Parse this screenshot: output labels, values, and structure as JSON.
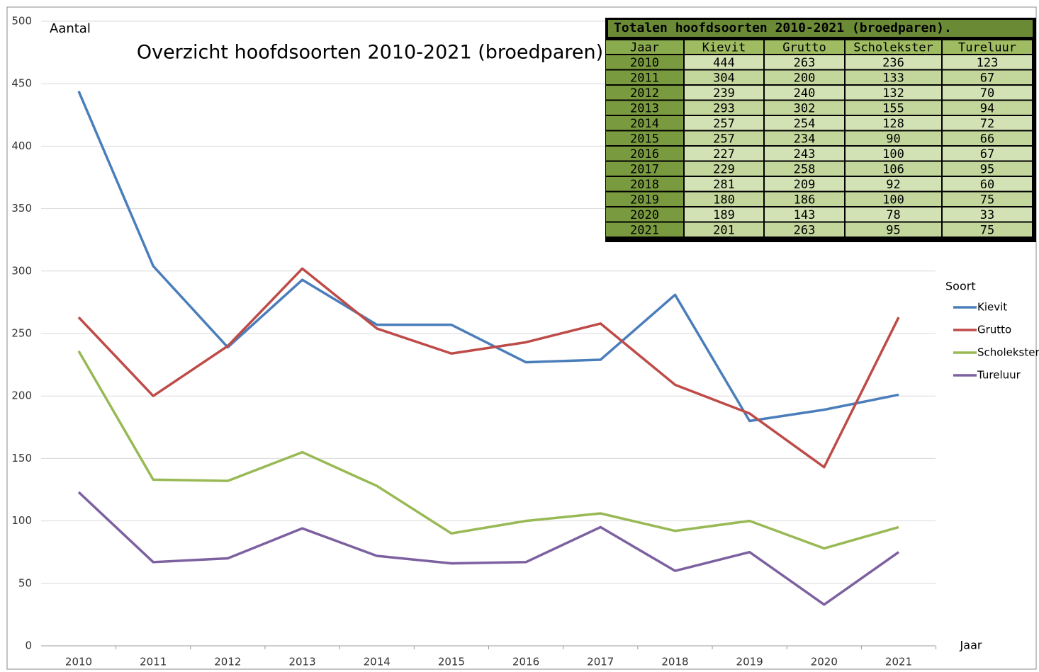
{
  "chart_data": {
    "type": "line",
    "title": "Overzicht hoofdsoorten 2010-2021 (broedparen)",
    "y_label": "Aantal",
    "x_label": "Jaar",
    "legend_title": "Soort",
    "categories": [
      "2010",
      "2011",
      "2012",
      "2013",
      "2014",
      "2015",
      "2016",
      "2017",
      "2018",
      "2019",
      "2020",
      "2021"
    ],
    "series": [
      {
        "name": "Kievit",
        "color": "#4a7ebb",
        "values": [
          444,
          304,
          239,
          293,
          257,
          257,
          227,
          229,
          281,
          180,
          189,
          201
        ]
      },
      {
        "name": "Grutto",
        "color": "#be4b48",
        "values": [
          263,
          200,
          240,
          302,
          254,
          234,
          243,
          258,
          209,
          186,
          143,
          263
        ]
      },
      {
        "name": "Scholekster",
        "color": "#98b954",
        "values": [
          236,
          133,
          132,
          155,
          128,
          90,
          100,
          106,
          92,
          100,
          78,
          95
        ]
      },
      {
        "name": "Tureluur",
        "color": "#7d60a0",
        "values": [
          123,
          67,
          70,
          94,
          72,
          66,
          67,
          95,
          60,
          75,
          33,
          75
        ]
      }
    ],
    "ylim": [
      0,
      500
    ],
    "yticks": [
      0,
      50,
      100,
      150,
      200,
      250,
      300,
      350,
      400,
      450,
      500
    ],
    "grid": true,
    "legend": "right"
  },
  "table": {
    "title": "Totalen hoofdsoorten 2010-2021 (broedparen)."
  }
}
